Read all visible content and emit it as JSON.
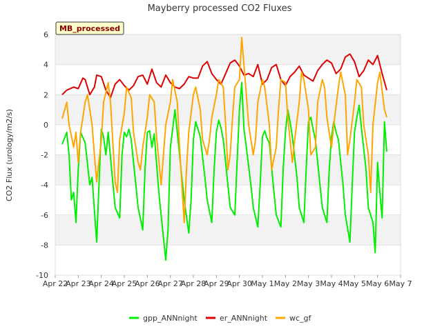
{
  "chart_data": {
    "type": "line",
    "title": "Mayberry processed CO2 Fluxes",
    "tag": "MB_processed",
    "xlabel": "",
    "ylabel": "CO2 Flux (urology/m2/s)",
    "ylim": [
      -10,
      6
    ],
    "y_ticks": [
      -10,
      -8,
      -6,
      -4,
      -2,
      0,
      2,
      4,
      6
    ],
    "xlim": [
      0,
      15
    ],
    "x_tick_labels": [
      "Apr 22",
      "Apr 23",
      "Apr 24",
      "Apr 25",
      "Apr 26",
      "Apr 27",
      "Apr 28",
      "Apr 29",
      "Apr 30",
      "May 1",
      "May 2",
      "May 3",
      "May 4",
      "May 5",
      "May 6",
      "May 7"
    ],
    "x_unit": "days since Apr 22",
    "grid": "horizontal bands",
    "legend_position": "bottom-center",
    "series": [
      {
        "name": "gpp_ANNnight",
        "color": "#00ee00",
        "x": [
          0.3,
          0.5,
          0.6,
          0.7,
          0.8,
          0.9,
          1.0,
          1.1,
          1.3,
          1.5,
          1.6,
          1.8,
          1.9,
          2.0,
          2.1,
          2.2,
          2.3,
          2.5,
          2.6,
          2.8,
          2.9,
          3.0,
          3.1,
          3.2,
          3.3,
          3.5,
          3.6,
          3.8,
          3.9,
          4.0,
          4.1,
          4.2,
          4.3,
          4.5,
          4.6,
          4.8,
          4.9,
          5.0,
          5.1,
          5.2,
          5.3,
          5.5,
          5.6,
          5.8,
          5.9,
          6.0,
          6.1,
          6.2,
          6.3,
          6.5,
          6.6,
          6.8,
          6.9,
          7.0,
          7.1,
          7.2,
          7.3,
          7.5,
          7.6,
          7.8,
          7.9,
          8.0,
          8.1,
          8.2,
          8.3,
          8.5,
          8.6,
          8.8,
          8.9,
          9.0,
          9.1,
          9.2,
          9.3,
          9.5,
          9.6,
          9.8,
          9.9,
          10.0,
          10.1,
          10.2,
          10.3,
          10.5,
          10.6,
          10.8,
          10.9,
          11.0,
          11.1,
          11.2,
          11.3,
          11.5,
          11.6,
          11.8,
          11.9,
          12.0,
          12.1,
          12.2,
          12.3,
          12.5,
          12.6,
          12.8,
          12.9,
          13.0,
          13.1,
          13.2,
          13.3,
          13.5,
          13.6,
          13.8,
          13.9,
          14.0,
          14.1,
          14.2,
          14.3,
          14.4
        ],
        "y": [
          -1.3,
          -0.5,
          -2.0,
          -5.0,
          -4.5,
          -6.5,
          -3.0,
          -0.5,
          -1.2,
          -4.0,
          -3.5,
          -7.8,
          -4.0,
          -0.3,
          -0.8,
          -2.0,
          -0.5,
          -3.8,
          -5.5,
          -6.2,
          -2.0,
          -0.5,
          -0.8,
          -0.3,
          -1.0,
          -4.0,
          -5.5,
          -7.0,
          -3.0,
          -0.5,
          -0.4,
          -1.5,
          -0.6,
          -4.5,
          -6.0,
          -9.0,
          -7.0,
          -1.5,
          -0.3,
          1.0,
          -0.5,
          -3.5,
          -5.0,
          -7.2,
          -5.0,
          -1.0,
          0.2,
          -0.3,
          -0.8,
          -3.5,
          -5.0,
          -6.5,
          -3.0,
          -0.5,
          0.3,
          -0.2,
          -1.0,
          -4.0,
          -5.5,
          -6.0,
          -2.5,
          1.0,
          2.8,
          -0.3,
          -1.5,
          -4.0,
          -5.5,
          -6.8,
          -4.0,
          -0.8,
          -0.4,
          -0.9,
          -1.2,
          -4.5,
          -6.0,
          -6.8,
          -3.0,
          -0.5,
          1.0,
          0.2,
          -0.8,
          -3.5,
          -5.5,
          -6.5,
          -3.0,
          0.2,
          0.5,
          -0.3,
          -1.0,
          -4.0,
          -5.5,
          -6.5,
          -3.0,
          -0.8,
          0.2,
          -0.5,
          -1.0,
          -4.0,
          -6.0,
          -7.8,
          -4.0,
          -0.5,
          0.5,
          1.3,
          -0.2,
          -3.0,
          -5.5,
          -6.5,
          -8.5,
          -2.5,
          -4.5,
          -6.2,
          0.2,
          -1.8
        ]
      },
      {
        "name": "er_ANNnight",
        "color": "#dd0000",
        "x": [
          0.3,
          0.5,
          0.8,
          1.0,
          1.2,
          1.3,
          1.5,
          1.7,
          1.8,
          2.0,
          2.2,
          2.4,
          2.6,
          2.8,
          3.0,
          3.2,
          3.4,
          3.6,
          3.8,
          4.0,
          4.2,
          4.4,
          4.6,
          4.8,
          5.0,
          5.2,
          5.4,
          5.6,
          5.8,
          6.0,
          6.2,
          6.4,
          6.6,
          6.8,
          7.0,
          7.2,
          7.4,
          7.6,
          7.8,
          8.0,
          8.2,
          8.4,
          8.6,
          8.8,
          9.0,
          9.2,
          9.4,
          9.6,
          9.8,
          10.0,
          10.2,
          10.4,
          10.6,
          10.8,
          11.0,
          11.2,
          11.4,
          11.6,
          11.8,
          12.0,
          12.2,
          12.4,
          12.6,
          12.8,
          13.0,
          13.2,
          13.4,
          13.6,
          13.8,
          14.0,
          14.2,
          14.4
        ],
        "y": [
          2.0,
          2.3,
          2.5,
          2.4,
          3.1,
          3.0,
          2.0,
          2.5,
          3.3,
          3.2,
          2.3,
          1.8,
          2.7,
          3.0,
          2.6,
          2.3,
          2.6,
          3.2,
          3.3,
          2.7,
          3.7,
          2.8,
          2.5,
          3.3,
          2.8,
          2.5,
          2.4,
          2.7,
          3.2,
          3.1,
          3.1,
          3.9,
          4.2,
          3.4,
          3.0,
          2.7,
          3.4,
          4.1,
          4.3,
          3.9,
          3.3,
          3.4,
          3.2,
          4.0,
          2.7,
          3.0,
          3.8,
          4.0,
          3.0,
          2.6,
          3.2,
          3.5,
          3.9,
          3.3,
          3.1,
          2.9,
          3.6,
          4.0,
          4.3,
          4.1,
          3.4,
          3.7,
          4.5,
          4.7,
          4.2,
          3.2,
          3.6,
          4.3,
          4.0,
          4.6,
          3.4,
          2.3
        ]
      },
      {
        "name": "wc_gf",
        "color": "#ffa500",
        "x": [
          0.3,
          0.5,
          0.6,
          0.8,
          0.9,
          1.0,
          1.1,
          1.3,
          1.4,
          1.6,
          1.7,
          1.8,
          2.0,
          2.1,
          2.3,
          2.4,
          2.6,
          2.7,
          2.8,
          3.0,
          3.1,
          3.3,
          3.4,
          3.6,
          3.7,
          3.8,
          4.0,
          4.1,
          4.3,
          4.4,
          4.6,
          4.7,
          4.8,
          5.0,
          5.1,
          5.3,
          5.4,
          5.6,
          5.7,
          5.8,
          6.0,
          6.1,
          6.3,
          6.4,
          6.6,
          6.7,
          6.8,
          7.0,
          7.1,
          7.3,
          7.4,
          7.5,
          7.6,
          7.7,
          7.8,
          8.0,
          8.1,
          8.3,
          8.4,
          8.6,
          8.7,
          8.8,
          9.0,
          9.1,
          9.3,
          9.4,
          9.6,
          9.7,
          9.8,
          10.0,
          10.1,
          10.3,
          10.4,
          10.6,
          10.7,
          10.8,
          11.0,
          11.1,
          11.3,
          11.4,
          11.6,
          11.7,
          11.8,
          12.0,
          12.1,
          12.3,
          12.4,
          12.6,
          12.7,
          12.8,
          13.0,
          13.1,
          13.3,
          13.4,
          13.6,
          13.7,
          13.8,
          14.0,
          14.1,
          14.3,
          14.4
        ],
        "y": [
          0.4,
          1.5,
          0.0,
          -1.5,
          -0.5,
          -2.5,
          -0.5,
          1.5,
          2.0,
          0.0,
          -2.0,
          -3.8,
          -1.0,
          1.5,
          2.8,
          1.5,
          -3.8,
          -4.5,
          -1.0,
          0.8,
          2.5,
          1.8,
          -0.5,
          -2.5,
          -3.0,
          -1.5,
          0.5,
          2.0,
          1.5,
          -0.8,
          -4.0,
          -2.0,
          0.0,
          1.5,
          3.0,
          1.5,
          -1.5,
          -6.5,
          -3.0,
          -0.5,
          2.0,
          2.5,
          1.0,
          -1.0,
          -2.0,
          -1.0,
          0.5,
          2.0,
          3.0,
          2.5,
          0.0,
          -3.0,
          -2.0,
          0.5,
          2.5,
          3.0,
          5.8,
          2.0,
          0.0,
          -2.0,
          -1.0,
          1.5,
          3.0,
          2.5,
          0.0,
          -3.0,
          -1.5,
          1.0,
          3.0,
          2.8,
          0.5,
          -2.5,
          -1.0,
          1.5,
          3.5,
          3.0,
          1.0,
          -2.0,
          -1.5,
          1.5,
          3.0,
          2.5,
          0.5,
          -1.5,
          0.0,
          2.5,
          3.5,
          2.0,
          -2.0,
          -1.0,
          1.5,
          3.0,
          2.5,
          0.0,
          -2.0,
          -4.5,
          0.0,
          2.8,
          3.5,
          1.0,
          0.5
        ]
      }
    ]
  }
}
